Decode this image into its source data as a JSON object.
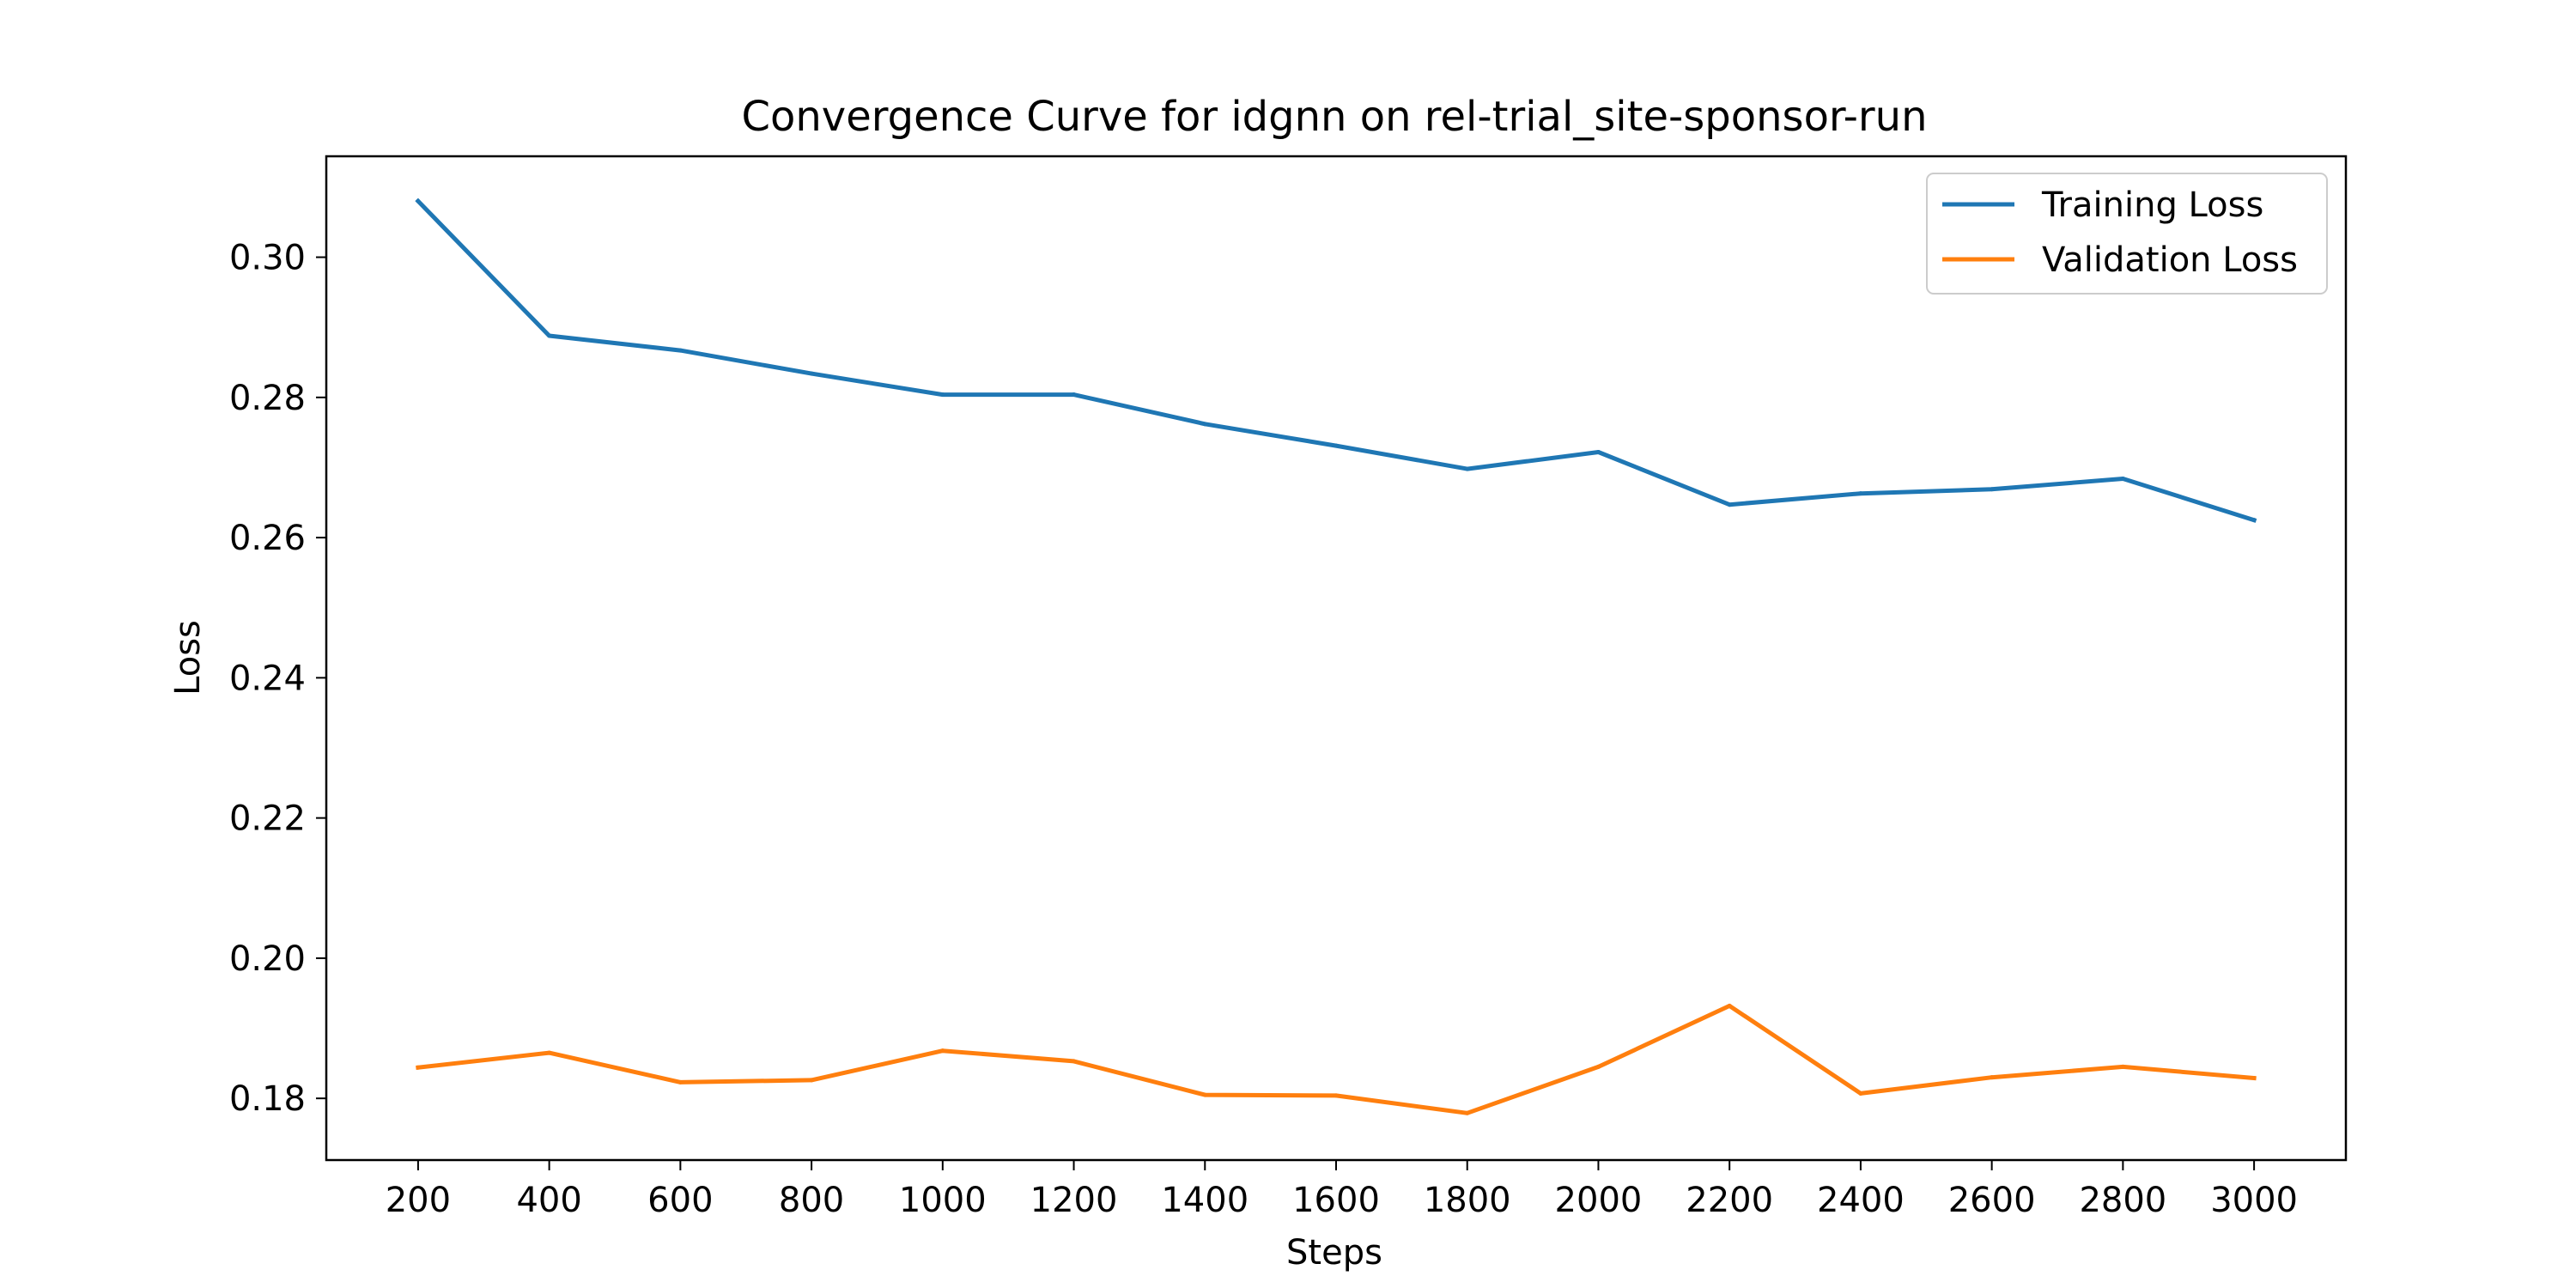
{
  "chart_data": {
    "type": "line",
    "title": "Convergence Curve for idgnn on rel-trial_site-sponsor-run",
    "xlabel": "Steps",
    "ylabel": "Loss",
    "x": [
      200,
      400,
      600,
      800,
      1000,
      1200,
      1400,
      1600,
      1800,
      2000,
      2200,
      2400,
      2600,
      2800,
      3000
    ],
    "xticks": [
      "200",
      "400",
      "600",
      "800",
      "1000",
      "1200",
      "1400",
      "1600",
      "1800",
      "2000",
      "2200",
      "2400",
      "2600",
      "2800",
      "3000"
    ],
    "yticks": [
      "0.18",
      "0.20",
      "0.22",
      "0.24",
      "0.26",
      "0.28",
      "0.30"
    ],
    "xlim": [
      60,
      3140
    ],
    "ylim": [
      0.1712,
      0.3144
    ],
    "grid": false,
    "legend_position": "upper right",
    "series": [
      {
        "name": "Training Loss",
        "color": "#1f77b4",
        "values": [
          0.308,
          0.2888,
          0.2867,
          0.2834,
          0.2804,
          0.2804,
          0.2762,
          0.2731,
          0.2698,
          0.2722,
          0.2647,
          0.2663,
          0.2669,
          0.2684,
          0.2625
        ]
      },
      {
        "name": "Validation Loss",
        "color": "#ff7f0e",
        "values": [
          0.1844,
          0.1865,
          0.1823,
          0.1826,
          0.1868,
          0.1853,
          0.1805,
          0.1804,
          0.1779,
          0.1845,
          0.1932,
          0.1807,
          0.183,
          0.1845,
          0.1829
        ]
      }
    ]
  }
}
